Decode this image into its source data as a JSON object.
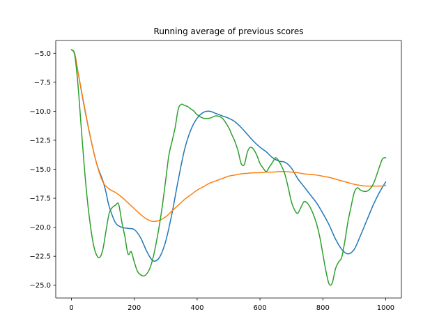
{
  "chart_data": {
    "type": "line",
    "title": "Running average of previous scores",
    "xlabel": "",
    "ylabel": "",
    "xlim": [
      -50,
      1050
    ],
    "ylim": [
      -26.1,
      -3.9
    ],
    "grid": false,
    "legend": "none",
    "x_ticks": [
      0,
      200,
      400,
      600,
      800,
      1000
    ],
    "x_tick_labels": [
      "0",
      "200",
      "400",
      "600",
      "800",
      "1000"
    ],
    "y_ticks": [
      -5.0,
      -7.5,
      -10.0,
      -12.5,
      -15.0,
      -17.5,
      -20.0,
      -22.5,
      -25.0
    ],
    "y_tick_labels": [
      "−5.0",
      "−7.5",
      "−10.0",
      "−12.5",
      "−15.0",
      "−17.5",
      "−20.0",
      "−22.5",
      "−25.0"
    ],
    "series": [
      {
        "color": "#1f77b4",
        "x": [
          0,
          10,
          20,
          40,
          60,
          80,
          100,
          110,
          120,
          140,
          160,
          180,
          200,
          220,
          240,
          260,
          280,
          300,
          320,
          340,
          360,
          380,
          400,
          420,
          440,
          460,
          480,
          500,
          520,
          540,
          560,
          580,
          600,
          620,
          640,
          660,
          680,
          700,
          720,
          740,
          760,
          780,
          800,
          820,
          840,
          860,
          880,
          900,
          920,
          940,
          960,
          980,
          1000
        ],
        "y": [
          -4.7,
          -5.0,
          -6.5,
          -9.5,
          -12.2,
          -14.5,
          -16.0,
          -17.0,
          -18.2,
          -19.6,
          -20.0,
          -20.1,
          -20.2,
          -20.9,
          -22.1,
          -22.9,
          -22.6,
          -21.2,
          -18.8,
          -15.9,
          -13.3,
          -11.6,
          -10.6,
          -10.1,
          -10.0,
          -10.2,
          -10.4,
          -10.6,
          -10.9,
          -11.4,
          -12.0,
          -12.6,
          -13.1,
          -13.5,
          -14.0,
          -14.3,
          -14.4,
          -14.9,
          -15.8,
          -16.5,
          -17.2,
          -17.9,
          -18.8,
          -19.8,
          -21.0,
          -21.9,
          -22.3,
          -21.9,
          -20.7,
          -19.4,
          -18.1,
          -17.0,
          -16.1
        ]
      },
      {
        "color": "#ff7f0e",
        "x": [
          0,
          10,
          20,
          40,
          60,
          80,
          100,
          120,
          140,
          160,
          180,
          200,
          220,
          240,
          260,
          280,
          300,
          320,
          340,
          360,
          380,
          400,
          420,
          440,
          460,
          480,
          500,
          520,
          540,
          560,
          580,
          600,
          620,
          640,
          660,
          680,
          700,
          720,
          740,
          760,
          780,
          800,
          820,
          840,
          860,
          880,
          900,
          920,
          940,
          960,
          980,
          1000
        ],
        "y": [
          -4.7,
          -5.0,
          -6.5,
          -9.4,
          -12.2,
          -14.5,
          -16.1,
          -16.7,
          -17.0,
          -17.4,
          -17.9,
          -18.4,
          -18.9,
          -19.3,
          -19.5,
          -19.4,
          -19.1,
          -18.6,
          -18.1,
          -17.6,
          -17.2,
          -16.8,
          -16.5,
          -16.2,
          -16.0,
          -15.8,
          -15.6,
          -15.5,
          -15.4,
          -15.35,
          -15.3,
          -15.3,
          -15.25,
          -15.25,
          -15.2,
          -15.2,
          -15.25,
          -15.3,
          -15.4,
          -15.45,
          -15.5,
          -15.6,
          -15.7,
          -15.85,
          -16.0,
          -16.15,
          -16.3,
          -16.4,
          -16.45,
          -16.45,
          -16.45,
          -16.4
        ]
      },
      {
        "color": "#2ca02c",
        "x": [
          0,
          10,
          20,
          30,
          40,
          50,
          60,
          70,
          80,
          90,
          100,
          110,
          120,
          130,
          140,
          150,
          160,
          170,
          180,
          190,
          200,
          210,
          220,
          230,
          240,
          250,
          260,
          270,
          280,
          290,
          300,
          310,
          320,
          330,
          340,
          350,
          360,
          370,
          380,
          390,
          400,
          420,
          440,
          460,
          480,
          500,
          510,
          520,
          530,
          540,
          550,
          560,
          570,
          580,
          590,
          600,
          610,
          620,
          630,
          640,
          650,
          660,
          670,
          680,
          690,
          700,
          710,
          720,
          730,
          740,
          750,
          760,
          770,
          780,
          790,
          800,
          810,
          820,
          830,
          840,
          850,
          860,
          870,
          880,
          890,
          900,
          910,
          920,
          930,
          940,
          950,
          960,
          970,
          980,
          990,
          1000
        ],
        "y": [
          -4.7,
          -5.1,
          -7.5,
          -11.0,
          -14.5,
          -17.5,
          -19.8,
          -21.5,
          -22.4,
          -22.6,
          -21.9,
          -20.3,
          -18.8,
          -18.3,
          -18.1,
          -18.0,
          -19.5,
          -20.8,
          -22.3,
          -22.1,
          -23.0,
          -23.8,
          -24.1,
          -24.2,
          -24.0,
          -23.5,
          -22.6,
          -21.3,
          -19.8,
          -18.0,
          -15.9,
          -13.8,
          -12.6,
          -11.4,
          -9.8,
          -9.4,
          -9.5,
          -9.6,
          -9.8,
          -10.0,
          -10.3,
          -10.6,
          -10.6,
          -10.4,
          -10.6,
          -11.4,
          -12.0,
          -12.6,
          -13.4,
          -14.5,
          -14.6,
          -13.5,
          -13.1,
          -13.3,
          -13.8,
          -14.5,
          -14.9,
          -15.2,
          -14.8,
          -14.4,
          -14.0,
          -14.3,
          -14.8,
          -15.5,
          -16.6,
          -17.8,
          -18.5,
          -18.8,
          -18.3,
          -17.8,
          -17.9,
          -18.3,
          -18.9,
          -19.7,
          -20.8,
          -22.3,
          -23.8,
          -24.9,
          -24.8,
          -23.6,
          -23.0,
          -22.6,
          -21.2,
          -19.5,
          -18.2,
          -17.0,
          -16.6,
          -16.8,
          -16.9,
          -16.9,
          -16.7,
          -16.3,
          -15.6,
          -14.8,
          -14.1,
          -14.0
        ]
      }
    ]
  }
}
